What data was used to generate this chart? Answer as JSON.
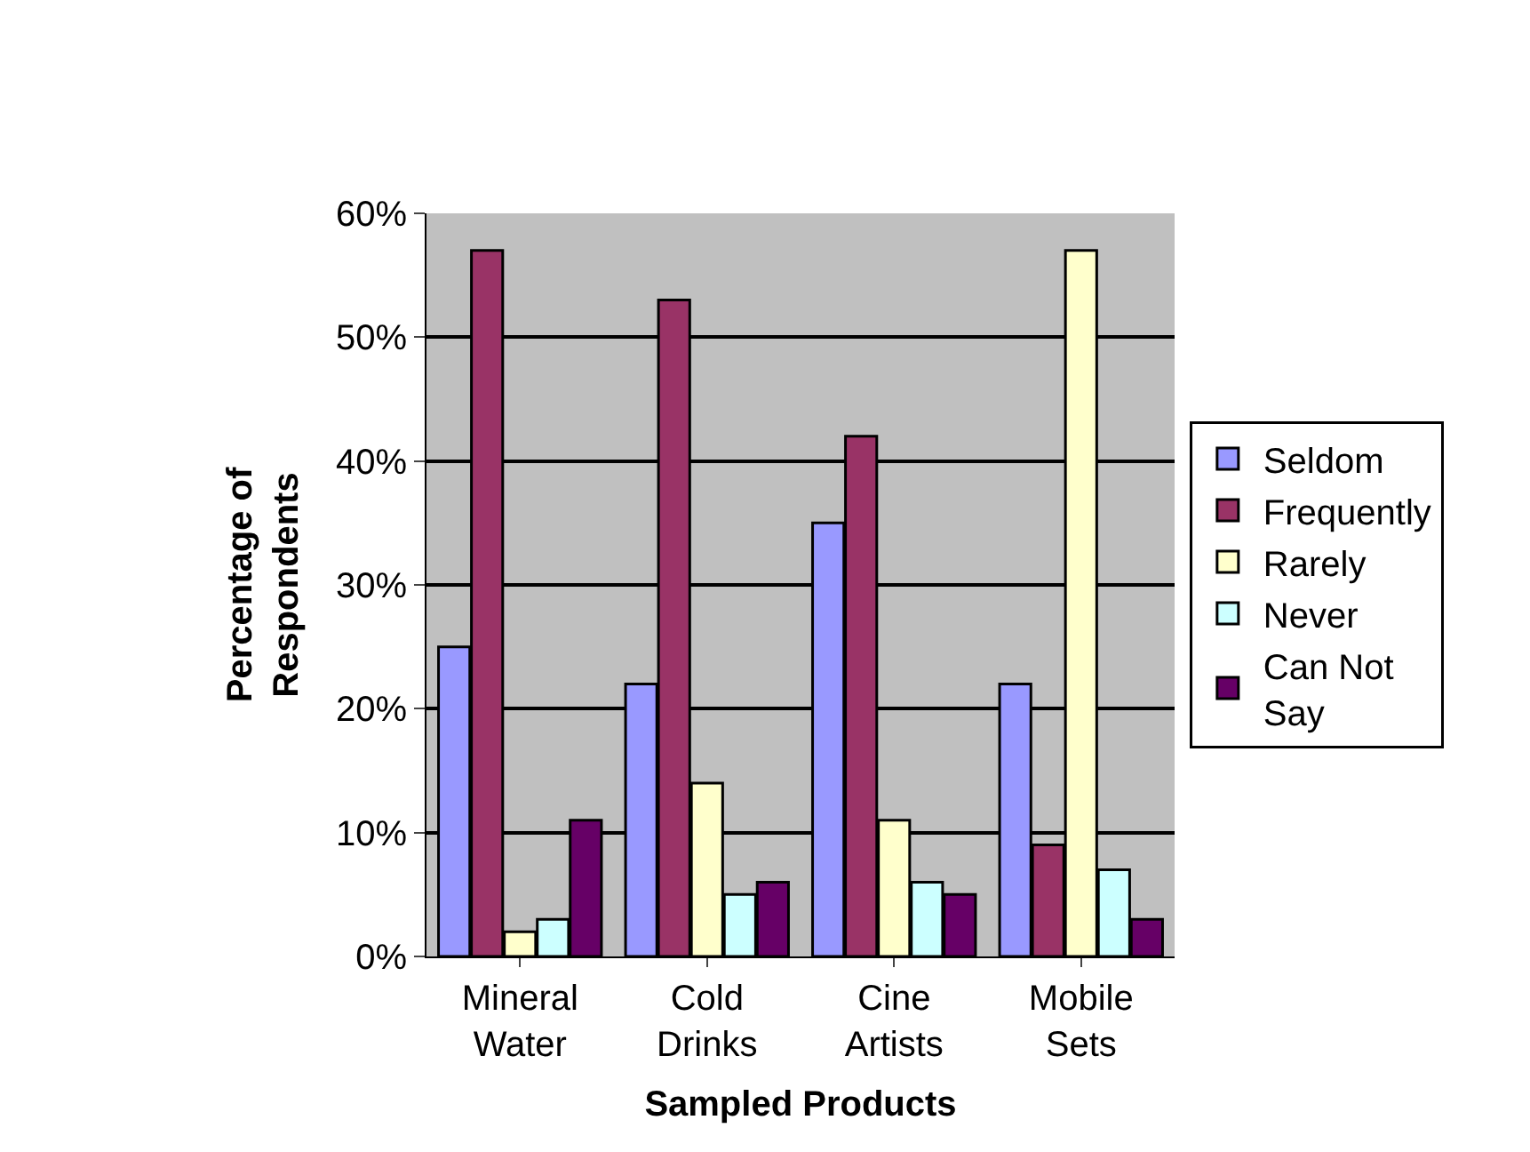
{
  "chart_data": {
    "type": "bar",
    "xlabel": "Sampled Products",
    "ylabel": "Percentage of Respondents",
    "categories": [
      "Mineral Water",
      "Cold Drinks",
      "Cine Artists",
      "Mobile Sets"
    ],
    "series": [
      {
        "name": "Seldom",
        "color": "#9999ff",
        "values": [
          25,
          22,
          35,
          22
        ]
      },
      {
        "name": "Frequently",
        "color": "#993366",
        "values": [
          57,
          53,
          42,
          9
        ]
      },
      {
        "name": "Rarely",
        "color": "#ffffcc",
        "values": [
          2,
          14,
          11,
          57
        ]
      },
      {
        "name": "Never",
        "color": "#ccffff",
        "values": [
          3,
          5,
          6,
          7
        ]
      },
      {
        "name": "Can Not Say",
        "color": "#660066",
        "values": [
          11,
          6,
          5,
          3
        ]
      }
    ],
    "ylim": [
      0,
      60
    ],
    "yticks": [
      {
        "value": 0,
        "label": "0%"
      },
      {
        "value": 10,
        "label": "10%"
      },
      {
        "value": 20,
        "label": "20%"
      },
      {
        "value": 30,
        "label": "30%"
      },
      {
        "value": 40,
        "label": "40%"
      },
      {
        "value": 50,
        "label": "50%"
      },
      {
        "value": 60,
        "label": "60%"
      }
    ],
    "grid": "y",
    "legend": "right"
  }
}
